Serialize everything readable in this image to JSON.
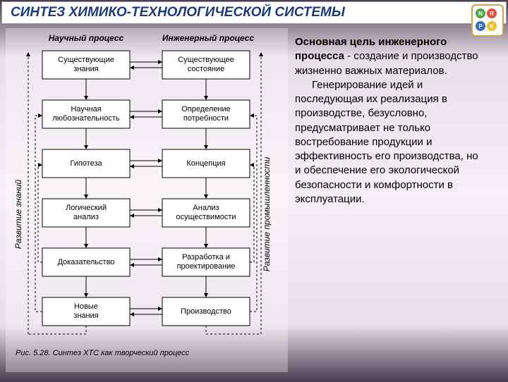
{
  "title": "СИНТЕЗ   ХИМИКО-ТЕХНОЛОГИЧЕСКОЙ СИСТЕМЫ",
  "logo": {
    "letters": [
      "N",
      "R",
      "P",
      "K"
    ],
    "colors": [
      "#4aa84a",
      "#e0503c",
      "#3c6cc0",
      "#e8c030"
    ],
    "border": "#d4a050"
  },
  "diagram": {
    "col1_header": "Научный процесс",
    "col2_header": "Инженерный процесс",
    "left_axis": "Развитие знаний",
    "right_axis": "Развитие промышленности",
    "col1": [
      "Существующие\nзнания",
      "Научная\nлюбознательность",
      "Гипотеза",
      "Логический\nанализ",
      "Доказательство",
      "Новые\nзнания"
    ],
    "col2": [
      "Существующее\nсостояние",
      "Определение\nпотребности",
      "Концепция",
      "Анализ\nосуществимости",
      "Разработка и\nпроектирование",
      "Производство"
    ],
    "caption": "Рис. 5.28. Синтез ХТС как творческий процесс",
    "box_fill": "#ffffff",
    "stroke": "#000000",
    "font_size_box": 11,
    "font_size_header": 12
  },
  "body_text": {
    "lead_bold": "Основная цель инженерного процесса",
    "lead_rest": " - создание и производство жизненно важных материалов.",
    "para2": "Генерирование идей и последующая их реализация в производстве, безусловно, предусматривает не только востребование продукции и эффективность его производства, но и обеспечение его экологической безопасности и комфортности в эксплуатации."
  },
  "colors": {
    "title_color": "#1b3a7a",
    "bg_grad_dark": "#4a3b52",
    "bg_grad_light": "#f5f0f5"
  }
}
